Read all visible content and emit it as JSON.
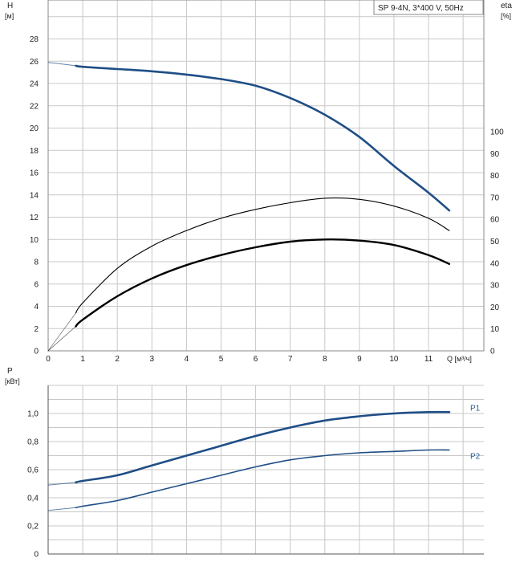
{
  "chart_data": [
    {
      "type": "line",
      "panel": "head-efficiency",
      "title_box": "SP 9-4N, 3*400 V, 50Hz",
      "y_axis_label": "H",
      "y_axis_unit": "[м]",
      "y2_axis_label": "eta",
      "y2_axis_unit": "[%]",
      "x_axis_label": "Q [м³/ч]",
      "x_ticks": [
        "0",
        "1",
        "2",
        "3",
        "4",
        "5",
        "6",
        "7",
        "8",
        "9",
        "10",
        "11"
      ],
      "y_ticks": [
        "0",
        "2",
        "4",
        "6",
        "8",
        "10",
        "12",
        "14",
        "16",
        "18",
        "20",
        "22",
        "24",
        "26",
        "28"
      ],
      "y2_ticks": [
        "0",
        "10",
        "20",
        "30",
        "40",
        "50",
        "60",
        "70",
        "80",
        "90",
        "100"
      ],
      "xlim": [
        0,
        12.6
      ],
      "ylim": [
        0,
        31.5
      ],
      "y2lim": [
        0,
        100
      ],
      "grid": true,
      "colors": {
        "head": "#1f4e86",
        "eta": "#000000",
        "grid": "#c8c8c8"
      },
      "series": [
        {
          "key": "head-extrapolated",
          "y_axis": "H",
          "x": [
            0,
            0.8
          ],
          "values": [
            25.9,
            25.6
          ]
        },
        {
          "key": "head",
          "y_axis": "H",
          "x": [
            0.8,
            1,
            2,
            3,
            4,
            5,
            6,
            7,
            8,
            9,
            10,
            11,
            11.6
          ],
          "values": [
            25.6,
            25.5,
            25.3,
            25.1,
            24.8,
            24.4,
            23.8,
            22.7,
            21.2,
            19.2,
            16.6,
            14.2,
            12.6
          ]
        },
        {
          "key": "eta-extrapolated",
          "y_axis": "H",
          "x": [
            0,
            0.8
          ],
          "values": [
            0,
            3.4
          ]
        },
        {
          "key": "eta-thin",
          "y_axis": "H",
          "x": [
            0.8,
            1,
            2,
            3,
            4,
            5,
            6,
            7,
            8,
            9,
            10,
            11,
            11.6
          ],
          "values": [
            3.4,
            4.3,
            7.4,
            9.4,
            10.8,
            11.9,
            12.7,
            13.3,
            13.7,
            13.6,
            13.0,
            11.9,
            10.8
          ]
        },
        {
          "key": "eta-thick-extrapolated",
          "y_axis": "H",
          "x": [
            0,
            0.8
          ],
          "values": [
            0,
            2.2
          ]
        },
        {
          "key": "eta-thick",
          "y_axis": "H",
          "x": [
            0.8,
            1,
            2,
            3,
            4,
            5,
            6,
            7,
            8,
            9,
            10,
            11,
            11.6
          ],
          "values": [
            2.2,
            2.8,
            4.9,
            6.5,
            7.7,
            8.6,
            9.3,
            9.8,
            10.0,
            9.9,
            9.5,
            8.6,
            7.8
          ]
        }
      ]
    },
    {
      "type": "line",
      "panel": "power",
      "y_axis_label": "P",
      "y_axis_unit": "[кВт]",
      "y_ticks": [
        "0",
        "0,2",
        "0,4",
        "0,6",
        "0,8",
        "1,0"
      ],
      "xlim": [
        0,
        12.6
      ],
      "ylim": [
        0,
        1.2
      ],
      "grid": true,
      "colors": {
        "power": "#1f4e86"
      },
      "series": [
        {
          "key": "p1-extrapolated",
          "y_axis": "P",
          "x": [
            0,
            0.8
          ],
          "values": [
            0.49,
            0.51
          ]
        },
        {
          "name": "P1",
          "key": "p1",
          "y_axis": "P",
          "x": [
            0.8,
            1,
            2,
            3,
            4,
            5,
            6,
            7,
            8,
            9,
            10,
            11,
            11.6
          ],
          "values": [
            0.51,
            0.52,
            0.56,
            0.63,
            0.7,
            0.77,
            0.84,
            0.9,
            0.95,
            0.98,
            1.0,
            1.01,
            1.01
          ]
        },
        {
          "key": "p2-extrapolated",
          "y_axis": "P",
          "x": [
            0,
            0.8
          ],
          "values": [
            0.31,
            0.33
          ]
        },
        {
          "name": "P2",
          "key": "p2",
          "y_axis": "P",
          "x": [
            0.8,
            1,
            2,
            3,
            4,
            5,
            6,
            7,
            8,
            9,
            10,
            11,
            11.6
          ],
          "values": [
            0.33,
            0.34,
            0.38,
            0.44,
            0.5,
            0.56,
            0.62,
            0.67,
            0.7,
            0.72,
            0.73,
            0.74,
            0.74
          ]
        }
      ]
    }
  ]
}
